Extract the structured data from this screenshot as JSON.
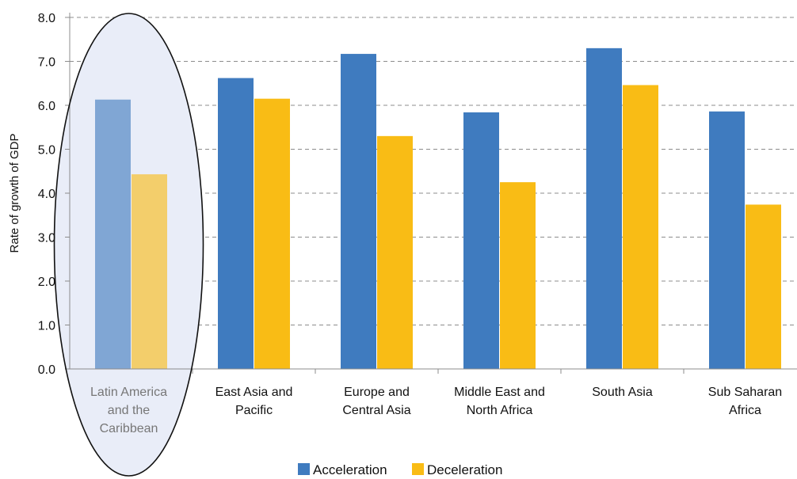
{
  "chart_data": {
    "type": "bar",
    "title": "",
    "xlabel": "",
    "ylabel": "Rate of growth of GDP",
    "ylim": [
      0,
      8
    ],
    "yticks": [
      "0.0",
      "1.0",
      "2.0",
      "3.0",
      "4.0",
      "5.0",
      "6.0",
      "7.0",
      "8.0"
    ],
    "grid": true,
    "legend_position": "bottom",
    "categories": [
      [
        "Latin America",
        "and the",
        "Caribbean"
      ],
      [
        "East Asia and",
        "Pacific"
      ],
      [
        "Europe and",
        "Central Asia"
      ],
      [
        "Middle East and",
        "North Africa"
      ],
      [
        "South Asia"
      ],
      [
        "Sub Saharan",
        "Africa"
      ]
    ],
    "series": [
      {
        "name": "Acceleration",
        "color": "#3F7BBF",
        "values": [
          6.13,
          6.62,
          7.17,
          5.84,
          7.3,
          5.86
        ]
      },
      {
        "name": "Deceleration",
        "color": "#F9BC15",
        "values": [
          4.43,
          6.15,
          5.3,
          4.25,
          6.46,
          3.74
        ]
      }
    ],
    "annotations": [
      {
        "type": "ellipse-highlight",
        "category_index": 0,
        "description": "highlighted category"
      }
    ]
  }
}
